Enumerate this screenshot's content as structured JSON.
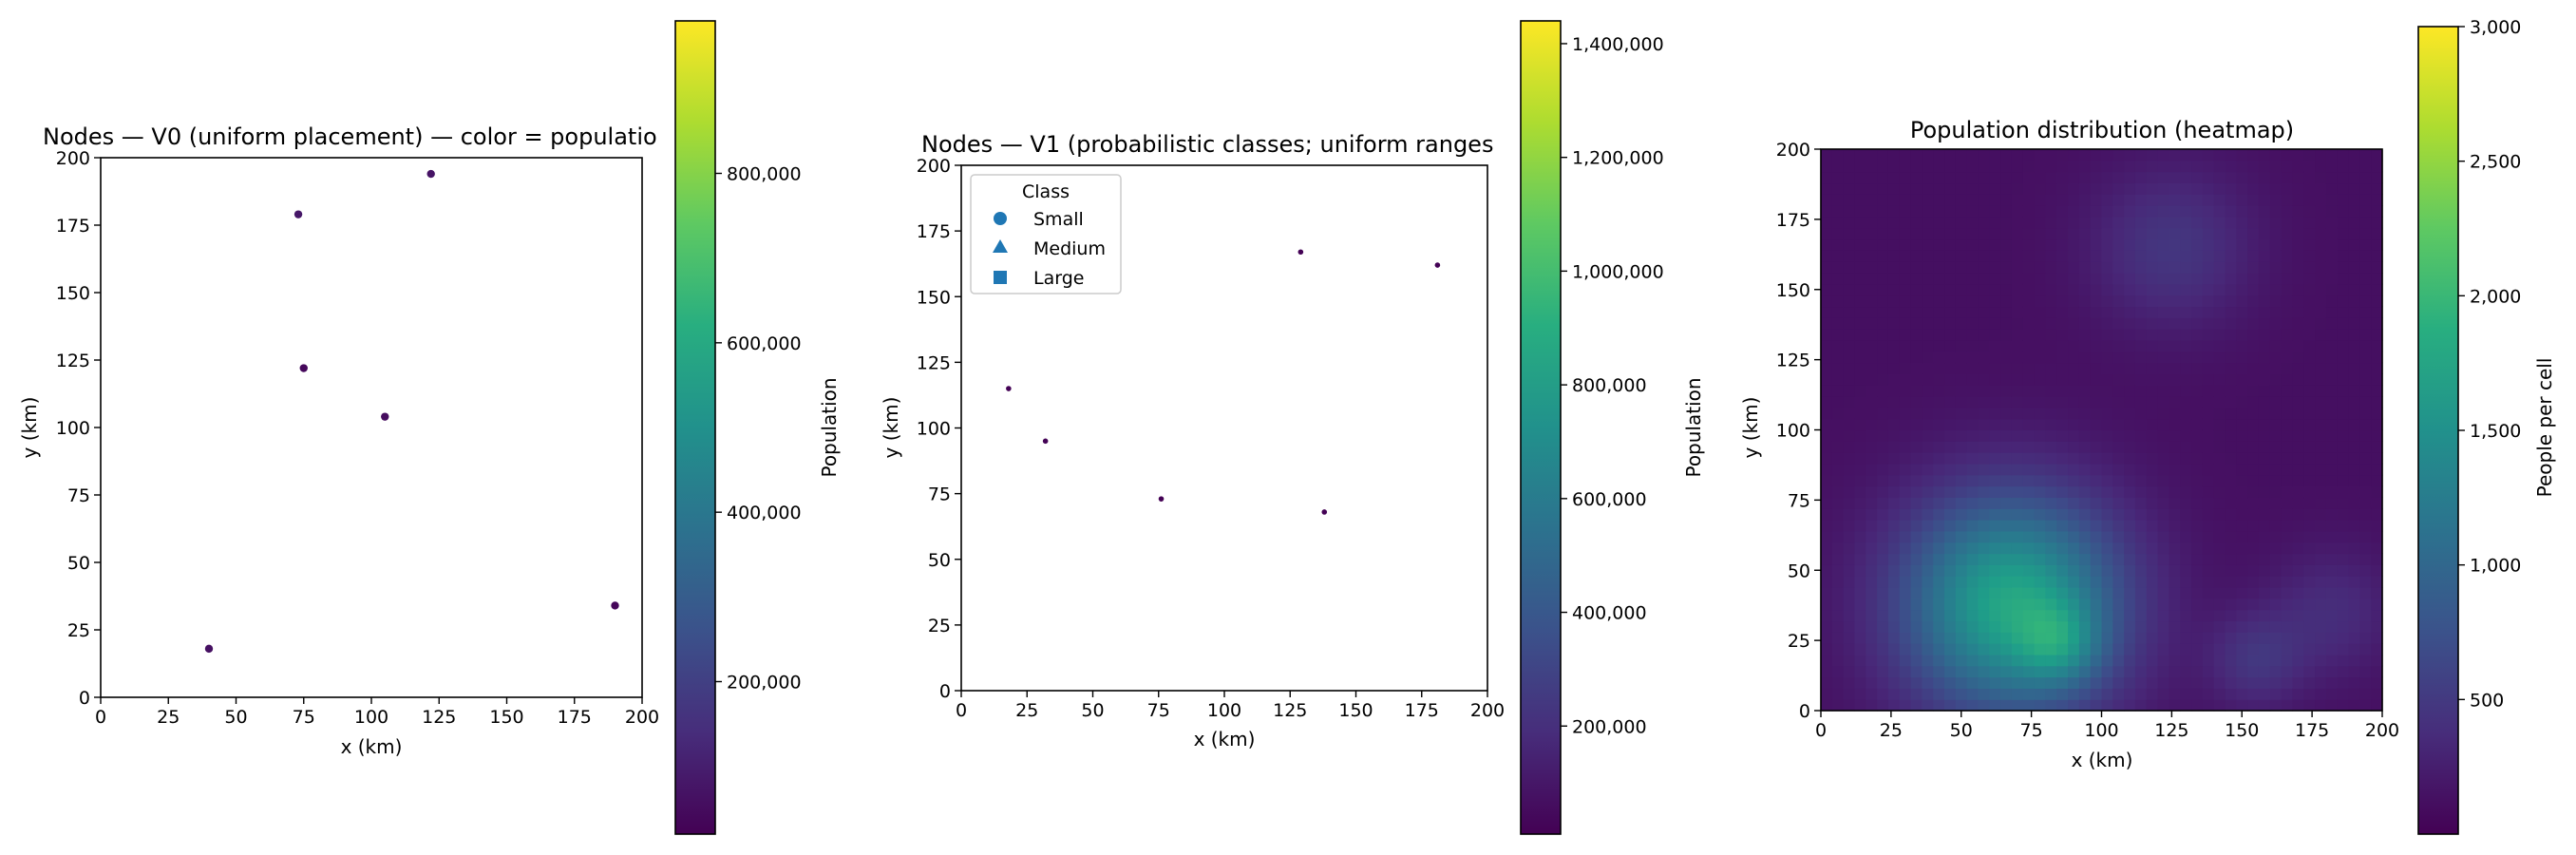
{
  "chart_data": [
    {
      "type": "scatter",
      "title": "Nodes — V0 (uniform placement) — color = populatio",
      "xlabel": "x (km)",
      "ylabel": "y (km)",
      "xlim": [
        0,
        200
      ],
      "ylim": [
        0,
        200
      ],
      "xticks": [
        "0",
        "25",
        "50",
        "75",
        "100",
        "125",
        "150",
        "175",
        "200"
      ],
      "yticks": [
        "0",
        "25",
        "50",
        "75",
        "100",
        "125",
        "150",
        "175",
        "200"
      ],
      "grid": false,
      "points": [
        {
          "x": 40,
          "y": 18,
          "population": 60000
        },
        {
          "x": 73,
          "y": 179,
          "population": 80000
        },
        {
          "x": 122,
          "y": 194,
          "population": 70000
        },
        {
          "x": 75,
          "y": 122,
          "population": 40000
        },
        {
          "x": 105,
          "y": 104,
          "population": 50000
        },
        {
          "x": 190,
          "y": 34,
          "population": 35000
        }
      ],
      "colorbar": {
        "label": "Population",
        "min": 20000,
        "max": 980000,
        "ticks": [
          200000,
          400000,
          600000,
          800000
        ],
        "tick_labels": [
          "200,000",
          "400,000",
          "600,000",
          "800,000"
        ],
        "colormap": "viridis"
      }
    },
    {
      "type": "scatter",
      "title": "Nodes — V1 (probabilistic classes; uniform ranges",
      "xlabel": "x (km)",
      "ylabel": "y (km)",
      "xlim": [
        0,
        200
      ],
      "ylim": [
        0,
        200
      ],
      "xticks": [
        "0",
        "25",
        "50",
        "75",
        "100",
        "125",
        "150",
        "175",
        "200"
      ],
      "yticks": [
        "0",
        "25",
        "50",
        "75",
        "100",
        "125",
        "150",
        "175",
        "200"
      ],
      "grid": false,
      "legend": {
        "title": "Class",
        "placement": "upper-left",
        "entries": [
          {
            "label": "Small",
            "marker": "circle"
          },
          {
            "label": "Medium",
            "marker": "triangle"
          },
          {
            "label": "Large",
            "marker": "square"
          }
        ]
      },
      "points": [
        {
          "x": 18,
          "y": 115,
          "population": 15000
        },
        {
          "x": 32,
          "y": 95,
          "population": 18000
        },
        {
          "x": 76,
          "y": 73,
          "population": 12000
        },
        {
          "x": 129,
          "y": 167,
          "population": 16000
        },
        {
          "x": 138,
          "y": 68,
          "population": 14000
        },
        {
          "x": 181,
          "y": 162,
          "population": 13000
        }
      ],
      "colorbar": {
        "label": "Population",
        "min": 10000,
        "max": 1440000,
        "ticks": [
          200000,
          400000,
          600000,
          800000,
          1000000,
          1200000,
          1400000
        ],
        "tick_labels": [
          "200,000",
          "400,000",
          "600,000",
          "800,000",
          "1,000,000",
          "1,200,000",
          "1,400,000"
        ],
        "colormap": "viridis"
      }
    },
    {
      "type": "heatmap",
      "title": "Population distribution (heatmap)",
      "xlabel": "x (km)",
      "ylabel": "y (km)",
      "xlim": [
        0,
        200
      ],
      "ylim": [
        0,
        200
      ],
      "xticks": [
        "0",
        "25",
        "50",
        "75",
        "100",
        "125",
        "150",
        "175",
        "200"
      ],
      "yticks": [
        "0",
        "25",
        "50",
        "75",
        "100",
        "125",
        "150",
        "175",
        "200"
      ],
      "base_value": 120,
      "hotspots": [
        {
          "x": 68,
          "y": 38,
          "peak": 1650,
          "sigma": 27
        },
        {
          "x": 85,
          "y": 24,
          "peak": 550,
          "sigma": 10
        },
        {
          "x": 125,
          "y": 165,
          "peak": 350,
          "sigma": 20
        },
        {
          "x": 155,
          "y": 18,
          "peak": 330,
          "sigma": 12
        },
        {
          "x": 182,
          "y": 35,
          "peak": 260,
          "sigma": 16
        }
      ],
      "colorbar": {
        "label": "People per cell",
        "min": 0,
        "max": 3000,
        "ticks": [
          500,
          1000,
          1500,
          2000,
          2500,
          3000
        ],
        "tick_labels": [
          "500",
          "1,000",
          "1,500",
          "2,000",
          "2,500",
          "3,000"
        ],
        "colormap": "viridis"
      }
    }
  ]
}
